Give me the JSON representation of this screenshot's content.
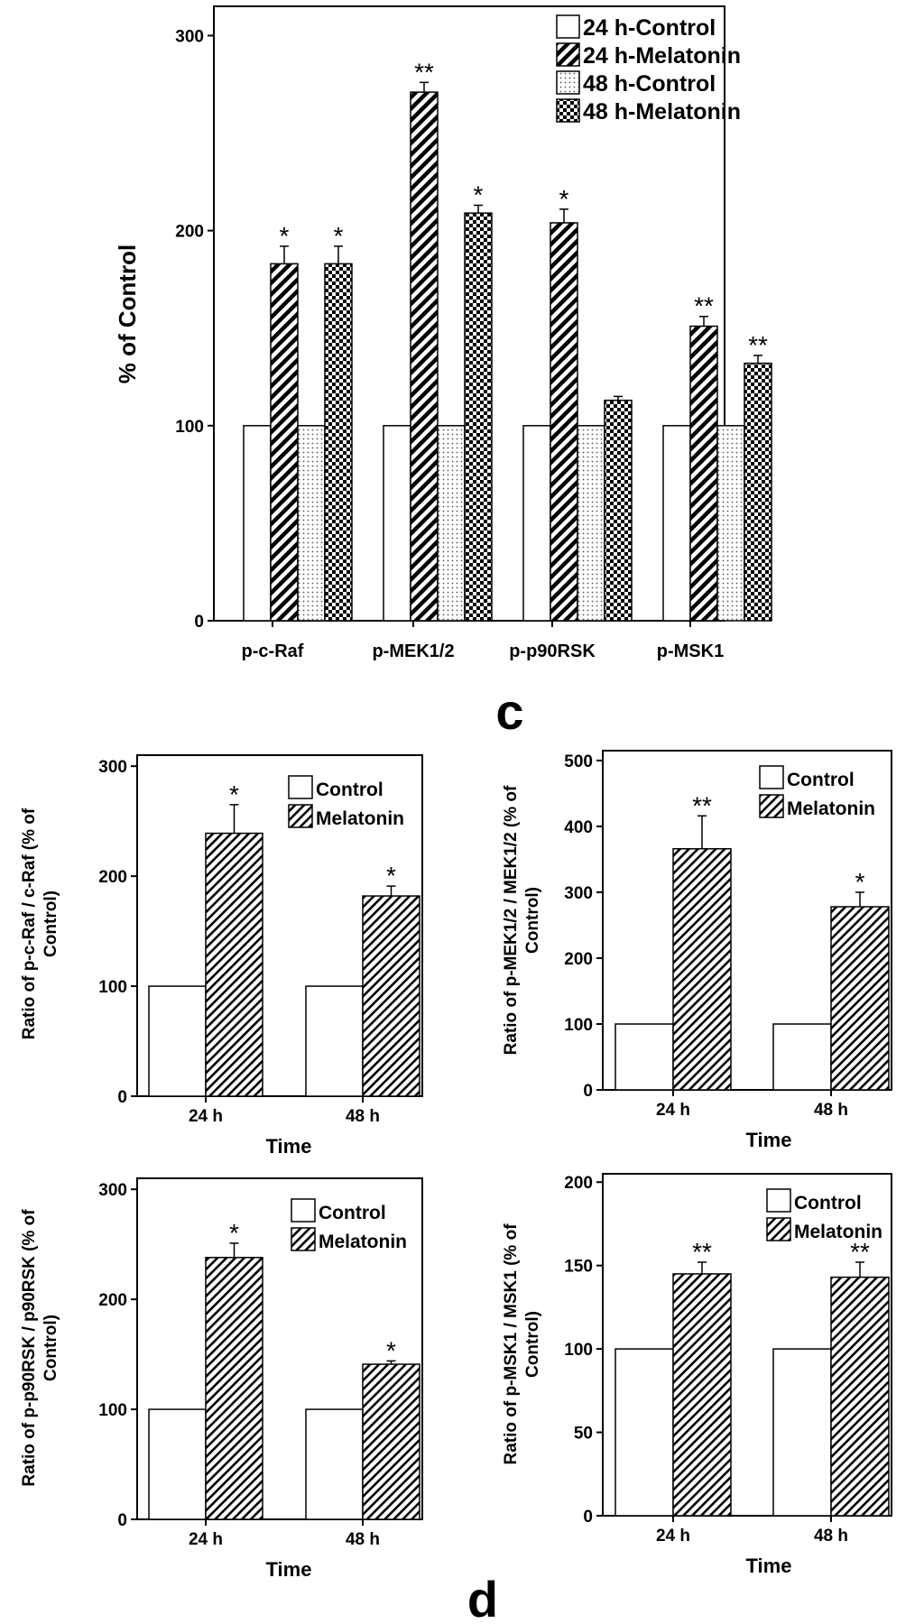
{
  "panel_labels": [
    "c",
    "d"
  ],
  "chart_data": [
    {
      "type": "bar",
      "ylabel": "% of Control",
      "xlabel": "",
      "ylim": [
        0,
        315
      ],
      "yticks": [
        0,
        100,
        200,
        300
      ],
      "categories": [
        "p-c-Raf",
        "p-MEK1/2",
        "p-p90RSK",
        "p-MSK1"
      ],
      "legend_position": "top-right",
      "series": [
        {
          "name": "24 h-Control",
          "pattern": "white",
          "values": [
            100,
            100,
            100,
            100
          ],
          "errors": [
            0,
            0,
            0,
            0
          ],
          "significance": [
            "",
            "",
            "",
            ""
          ]
        },
        {
          "name": "24 h-Melatonin",
          "pattern": "diagonal",
          "values": [
            183,
            271,
            204,
            151
          ],
          "errors": [
            9,
            5,
            7,
            5
          ],
          "significance": [
            "*",
            "**",
            "*",
            "**"
          ]
        },
        {
          "name": "48 h-Control",
          "pattern": "dots",
          "values": [
            100,
            100,
            100,
            100
          ],
          "errors": [
            0,
            0,
            0,
            0
          ],
          "significance": [
            "",
            "",
            "",
            ""
          ]
        },
        {
          "name": "48 h-Melatonin",
          "pattern": "checker",
          "values": [
            183,
            209,
            113,
            132
          ],
          "errors": [
            9,
            4,
            2,
            4
          ],
          "significance": [
            "*",
            "*",
            "",
            "**"
          ]
        }
      ]
    },
    {
      "type": "bar",
      "ylabel": "Ratio of p-c-Raf / c-Raf (% of Control)",
      "xlabel": "Time",
      "ylim": [
        0,
        310
      ],
      "yticks": [
        0,
        100,
        200,
        300
      ],
      "categories": [
        "24 h",
        "48 h"
      ],
      "legend_position": "top-right",
      "series": [
        {
          "name": "Control",
          "pattern": "white",
          "values": [
            100,
            100
          ],
          "errors": [
            0,
            0
          ],
          "significance": [
            "",
            ""
          ]
        },
        {
          "name": "Melatonin",
          "pattern": "diagonal",
          "values": [
            239,
            182
          ],
          "errors": [
            26,
            9
          ],
          "significance": [
            "*",
            "*"
          ]
        }
      ]
    },
    {
      "type": "bar",
      "ylabel": "Ratio of p-MEK1/2 / MEK1/2 (% of Control)",
      "xlabel": "Time",
      "ylim": [
        0,
        515
      ],
      "yticks": [
        0,
        100,
        200,
        300,
        400,
        500
      ],
      "categories": [
        "24 h",
        "48 h"
      ],
      "legend_position": "top-right",
      "series": [
        {
          "name": "Control",
          "pattern": "white",
          "values": [
            100,
            100
          ],
          "errors": [
            0,
            0
          ],
          "significance": [
            "",
            ""
          ]
        },
        {
          "name": "Melatonin",
          "pattern": "diagonal",
          "values": [
            366,
            278
          ],
          "errors": [
            50,
            22
          ],
          "significance": [
            "**",
            "*"
          ]
        }
      ]
    },
    {
      "type": "bar",
      "ylabel": "Ratio of p-p90RSK / p90RSK (% of Control)",
      "xlabel": "Time",
      "ylim": [
        0,
        310
      ],
      "yticks": [
        0,
        100,
        200,
        300
      ],
      "categories": [
        "24 h",
        "48 h"
      ],
      "legend_position": "top-right",
      "series": [
        {
          "name": "Control",
          "pattern": "white",
          "values": [
            100,
            100
          ],
          "errors": [
            0,
            0
          ],
          "significance": [
            "",
            ""
          ]
        },
        {
          "name": "Melatonin",
          "pattern": "diagonal",
          "values": [
            238,
            141
          ],
          "errors": [
            13,
            3
          ],
          "significance": [
            "*",
            "*"
          ]
        }
      ]
    },
    {
      "type": "bar",
      "ylabel": "Ratio of p-MSK1 / MSK1 (% of Control)",
      "xlabel": "Time",
      "ylim": [
        0,
        205
      ],
      "yticks": [
        0,
        50,
        100,
        150,
        200
      ],
      "categories": [
        "24 h",
        "48 h"
      ],
      "legend_position": "top-right",
      "series": [
        {
          "name": "Control",
          "pattern": "white",
          "values": [
            100,
            100
          ],
          "errors": [
            0,
            0
          ],
          "significance": [
            "",
            ""
          ]
        },
        {
          "name": "Melatonin",
          "pattern": "diagonal",
          "values": [
            145,
            143
          ],
          "errors": [
            7,
            9
          ],
          "significance": [
            "**",
            "**"
          ]
        }
      ]
    }
  ]
}
